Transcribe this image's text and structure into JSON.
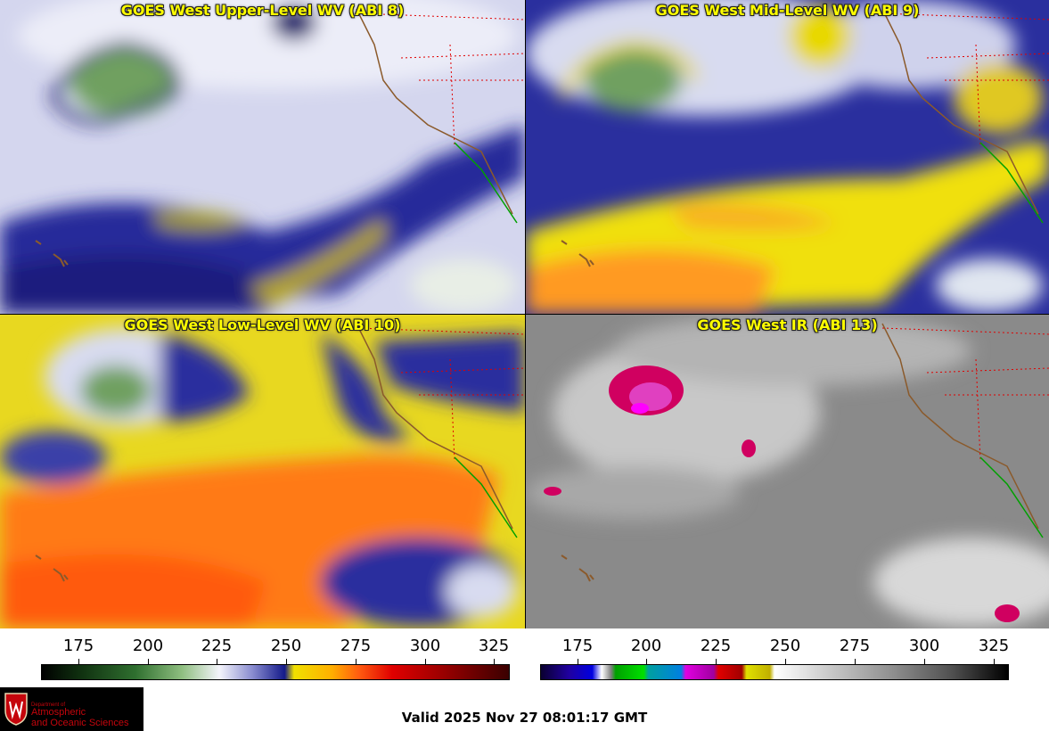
{
  "panels": {
    "upper_level": {
      "title": "GOES West Upper-Level WV (ABI 8)"
    },
    "mid_level": {
      "title": "GOES West Mid-Level WV (ABI 9)"
    },
    "low_level": {
      "title": "GOES West Low-Level WV (ABI 10)"
    },
    "ir": {
      "title": "GOES West IR (ABI 13)"
    }
  },
  "scales": {
    "wv": {
      "ticks": [
        "175",
        "200",
        "225",
        "250",
        "275",
        "300",
        "325"
      ]
    },
    "ir": {
      "ticks": [
        "175",
        "200",
        "225",
        "250",
        "275",
        "300",
        "325"
      ]
    }
  },
  "logo": {
    "line1": "Department of",
    "line2": "Atmospheric",
    "line3": "and Oceanic Sciences"
  },
  "valid_time": "Valid 2025 Nov 27 08:01:17 GMT",
  "colors": {
    "wv_moist": "#f4f4fb",
    "wv_mid": "#1a1f8c",
    "wv_dry": "#f0e000",
    "wv_very_dry": "#ff5a10",
    "ir_background": "#8a8a8a",
    "ir_cold": "#e0007a",
    "coastline": "#8b5a2b",
    "state_borders": "#e00000",
    "mexico_border": "#00a000"
  }
}
